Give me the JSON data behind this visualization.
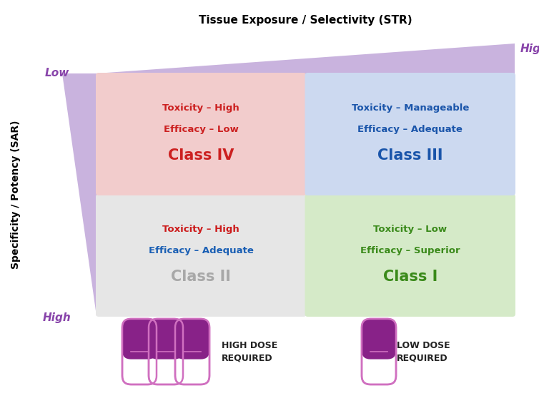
{
  "bg_color": "#ffffff",
  "quadrants": [
    {
      "name": "Class II",
      "col": 0,
      "row": 1,
      "bg": "#e6e6e6",
      "class_color": "#a8a8a8",
      "lines": [
        "Efficacy – Adequate",
        "Toxicity – High"
      ],
      "line_colors": [
        "#1a5fb4",
        "#cc1a1a"
      ]
    },
    {
      "name": "Class I",
      "col": 1,
      "row": 1,
      "bg": "#d5eac8",
      "class_color": "#3a8a1a",
      "lines": [
        "Efficacy – Superior",
        "Toxicity – Low"
      ],
      "line_colors": [
        "#3a8a1a",
        "#3a8a1a"
      ]
    },
    {
      "name": "Class IV",
      "col": 0,
      "row": 0,
      "bg": "#f2cccc",
      "class_color": "#cc2020",
      "lines": [
        "Efficacy – Low",
        "Toxicity – High"
      ],
      "line_colors": [
        "#cc2020",
        "#cc2020"
      ]
    },
    {
      "name": "Class III",
      "col": 1,
      "row": 0,
      "bg": "#ccd9f0",
      "class_color": "#1a55aa",
      "lines": [
        "Efficacy – Adequate",
        "Toxicity – Manageable"
      ],
      "line_colors": [
        "#1a55aa",
        "#1a55aa"
      ]
    }
  ],
  "y_high": "High",
  "y_low": "Low",
  "x_high": "High",
  "ylabel": "Specificity / Potency (SAR)",
  "xlabel": "Tissue Exposure / Selectivity (STR)",
  "tri_color": "#c9b3de",
  "label_color": "#8844aa",
  "high_dose_text": "HIGH DOSE\nREQUIRED",
  "low_dose_text": "LOW DOSE\nREQUIRED",
  "dose_text_color": "#222222",
  "capsule_border": "#d070c0",
  "capsule_fill": "#882288",
  "capsule_bottom_fill": "#aa44aa"
}
